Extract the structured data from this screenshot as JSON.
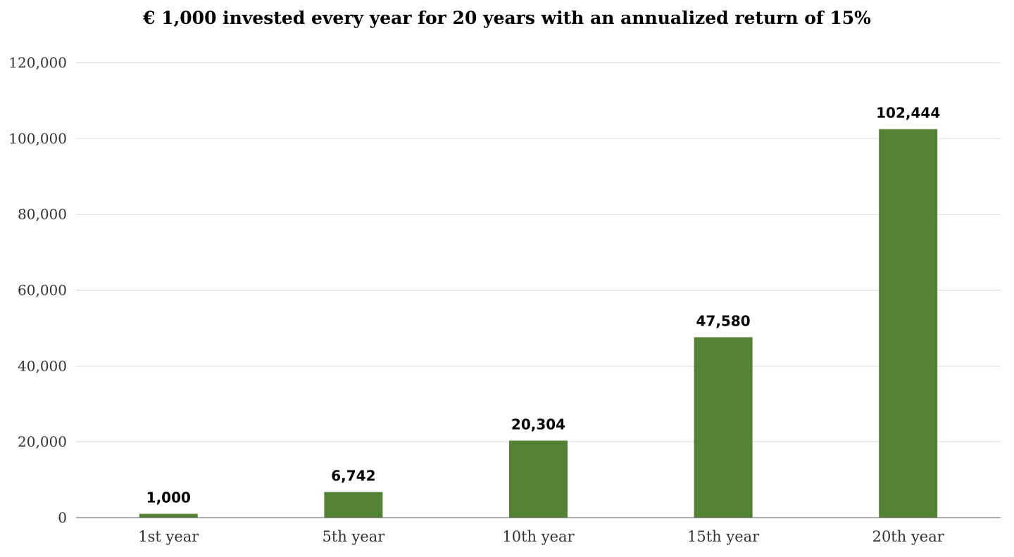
{
  "chart_data": {
    "type": "bar",
    "title": "€ 1,000 invested every year for 20 years with an annualized return of 15%",
    "categories": [
      "1st year",
      "5th year",
      "10th year",
      "15th year",
      "20th year"
    ],
    "values": [
      1000,
      6742,
      20304,
      47580,
      102444
    ],
    "data_labels": [
      "1,000",
      "6,742",
      "20,304",
      "47,580",
      "102,444"
    ],
    "y_ticks": [
      0,
      20000,
      40000,
      60000,
      80000,
      100000,
      120000
    ],
    "y_tick_labels": [
      "0",
      "20,000",
      "40,000",
      "60,000",
      "80,000",
      "100,000",
      "120,000"
    ],
    "ylim": [
      0,
      120000
    ],
    "xlabel": "",
    "ylabel": "",
    "grid": true,
    "legend": "none",
    "colors": {
      "bar": "#548235",
      "gridline": "#d9d9d9",
      "axis": "#595959"
    }
  }
}
